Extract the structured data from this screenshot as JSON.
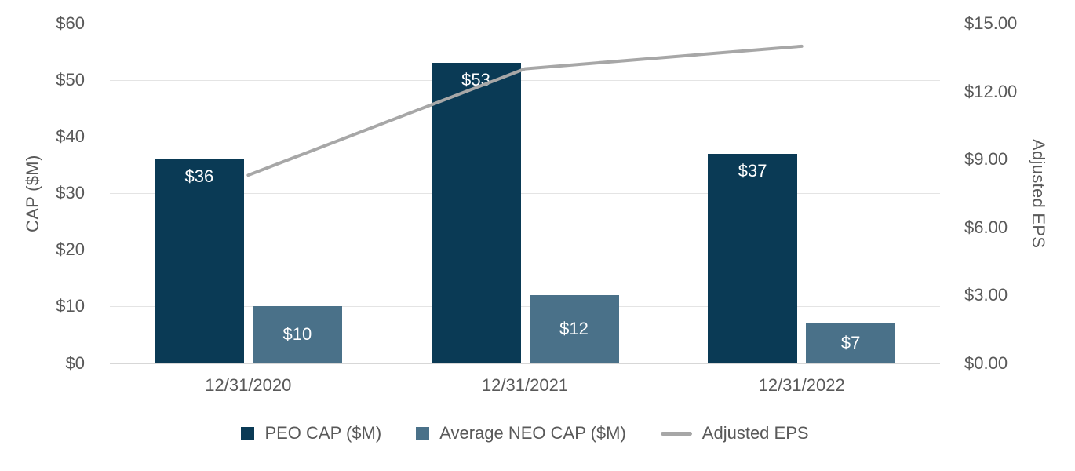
{
  "chart_data": {
    "type": "bar",
    "subtype": "grouped bars with secondary-axis line",
    "title": "",
    "categories": [
      "12/31/2020",
      "12/31/2021",
      "12/31/2022"
    ],
    "series": [
      {
        "name": "PEO CAP ($M)",
        "type": "bar",
        "axis": "left",
        "values": [
          36,
          53,
          37
        ],
        "data_labels": [
          "$36",
          "$53",
          "$37"
        ],
        "label_position": "inside-top",
        "color": "#0a3a55"
      },
      {
        "name": "Average NEO CAP ($M)",
        "type": "bar",
        "axis": "left",
        "values": [
          10,
          12,
          7
        ],
        "data_labels": [
          "$10",
          "$12",
          "$7"
        ],
        "label_position": "inside-center",
        "color": "#4a7189"
      },
      {
        "name": "Adjusted EPS",
        "type": "line",
        "axis": "right",
        "values": [
          8.3,
          13.0,
          14.0
        ],
        "data_labels": [],
        "color": "#a7a7a7"
      }
    ],
    "left_axis": {
      "title": "CAP ($M)",
      "min": 0,
      "max": 60,
      "tick_interval": 10,
      "ticks": [
        "$0",
        "$10",
        "$20",
        "$30",
        "$40",
        "$50",
        "$60"
      ]
    },
    "right_axis": {
      "title": "Adjusted EPS",
      "min": 0,
      "max": 15,
      "tick_interval": 3,
      "ticks": [
        "$0.00",
        "$3.00",
        "$6.00",
        "$9.00",
        "$12.00",
        "$15.00"
      ]
    },
    "grid": "horizontal",
    "legend_position": "bottom"
  },
  "colors": {
    "peo_bar": "#0a3a55",
    "neo_bar": "#4a7189",
    "eps_line": "#a7a7a7",
    "axis_text": "#595959",
    "gridline": "#e4e4e4",
    "bar_label_text": "#ffffff",
    "background": "#ffffff"
  }
}
